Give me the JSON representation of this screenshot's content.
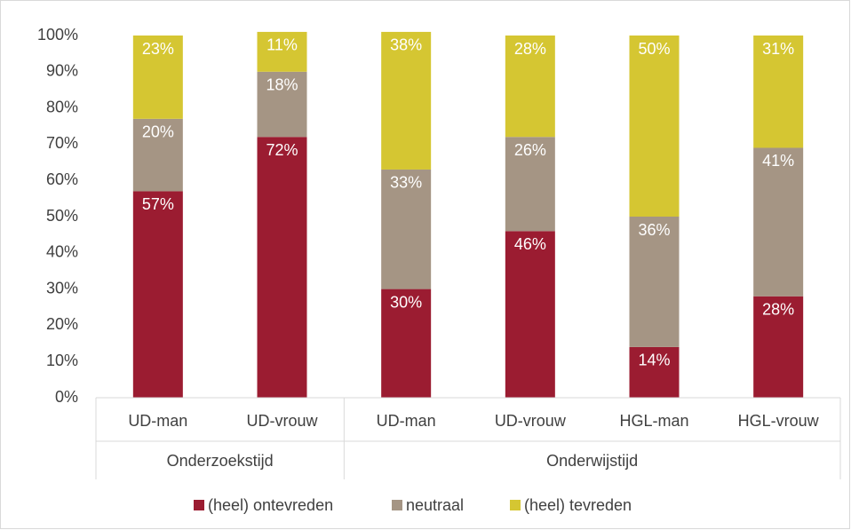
{
  "chart_data": {
    "type": "stacked_bar",
    "categories": [
      "UD-man",
      "UD-vrouw",
      "UD-man",
      "UD-vrouw",
      "HGL-man",
      "HGL-vrouw"
    ],
    "groups": [
      {
        "name": "Onderzoekstijd",
        "count": 2
      },
      {
        "name": "Onderwijstijd",
        "count": 4
      }
    ],
    "series": [
      {
        "name": "(heel) ontevreden",
        "color": "#9b1c31",
        "values": [
          57,
          72,
          30,
          46,
          14,
          28
        ],
        "value_labels": [
          "57%",
          "72%",
          "30%",
          "46%",
          "14%",
          "28%"
        ]
      },
      {
        "name": "neutraal",
        "color": "#a59584",
        "values": [
          20,
          18,
          33,
          26,
          36,
          41
        ],
        "value_labels": [
          "20%",
          "18%",
          "33%",
          "26%",
          "36%",
          "41%"
        ]
      },
      {
        "name": "(heel) tevreden",
        "color": "#d5c632",
        "values": [
          23,
          11,
          38,
          28,
          50,
          31
        ],
        "value_labels": [
          "23%",
          "11%",
          "38%",
          "28%",
          "50%",
          "31%"
        ]
      }
    ],
    "ylim": [
      0,
      100
    ],
    "yticks": [
      {
        "value": 0,
        "label": "0%"
      },
      {
        "value": 10,
        "label": "10%"
      },
      {
        "value": 20,
        "label": "20%"
      },
      {
        "value": 30,
        "label": "30%"
      },
      {
        "value": 40,
        "label": "40%"
      },
      {
        "value": 50,
        "label": "50%"
      },
      {
        "value": 60,
        "label": "60%"
      },
      {
        "value": 70,
        "label": "70%"
      },
      {
        "value": 80,
        "label": "80%"
      },
      {
        "value": 90,
        "label": "90%"
      },
      {
        "value": 100,
        "label": "100%"
      }
    ],
    "grid": false,
    "legend": "bottom"
  }
}
